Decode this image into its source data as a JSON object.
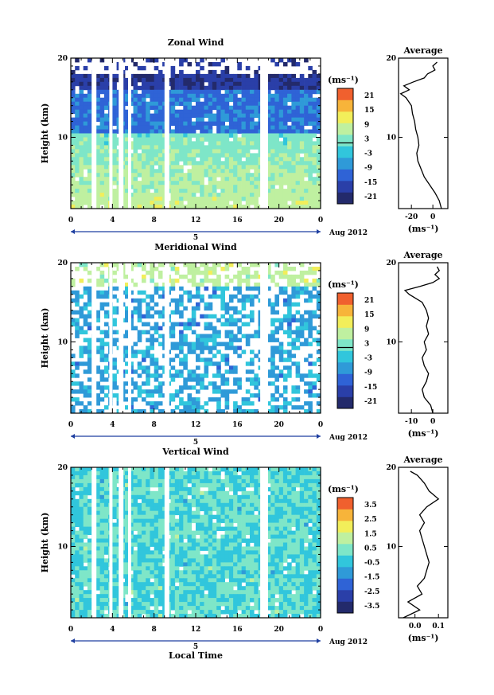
{
  "chart_data": [
    {
      "type": "heatmap",
      "title": "Zonal Wind",
      "ylabel": "Height (km)",
      "xticks": [
        "0",
        "4",
        "8",
        "12",
        "16",
        "20",
        "0"
      ],
      "yticks": [
        "10",
        "20"
      ],
      "day_label": "5",
      "date_label": "Aug 2012",
      "xlim": [
        0,
        24
      ],
      "ylim": [
        1,
        20
      ],
      "colorbar": {
        "unit_label": "(ms⁻¹)",
        "ticks": [
          "21",
          "15",
          "9",
          "3",
          "-3",
          "-9",
          "-15",
          "-21"
        ],
        "range": [
          -24,
          24
        ],
        "zero_line": true
      },
      "profile": {
        "title": "Average",
        "unit_label": "(ms⁻¹)",
        "xticks": [
          "-20",
          "0"
        ],
        "yticks": [
          "10",
          "20"
        ],
        "xlim": [
          -32,
          14
        ],
        "heights": [
          1,
          2,
          3,
          4,
          5,
          6,
          7,
          8,
          9,
          10,
          11,
          12,
          13,
          14,
          15,
          15.5,
          16,
          16.5,
          17,
          17.5,
          18,
          18.5,
          19,
          19.5
        ],
        "values": [
          8,
          6,
          2,
          -3,
          -8,
          -11,
          -14,
          -15,
          -13,
          -14,
          -16,
          -17,
          -19,
          -20,
          -25,
          -30,
          -22,
          -27,
          -18,
          -8,
          -5,
          2,
          0,
          4
        ]
      }
    },
    {
      "type": "heatmap",
      "title": "Meridional Wind",
      "ylabel": "Height (km)",
      "xticks": [
        "0",
        "4",
        "8",
        "12",
        "16",
        "20",
        "0"
      ],
      "yticks": [
        "10",
        "20"
      ],
      "day_label": "5",
      "date_label": "Aug 2012",
      "xlim": [
        0,
        24
      ],
      "ylim": [
        1,
        20
      ],
      "colorbar": {
        "unit_label": "(ms⁻¹)",
        "ticks": [
          "21",
          "15",
          "9",
          "3",
          "-3",
          "-9",
          "-15",
          "-21"
        ],
        "range": [
          -24,
          24
        ],
        "zero_line": true
      },
      "profile": {
        "title": "Average",
        "unit_label": "(ms⁻¹)",
        "xticks": [
          "-10",
          "0"
        ],
        "yticks": [
          "10",
          "20"
        ],
        "xlim": [
          -16,
          7
        ],
        "heights": [
          1,
          2,
          3,
          4,
          5,
          6,
          7,
          8,
          9,
          10,
          11,
          12,
          13,
          14,
          15,
          16,
          16.5,
          17,
          17.5,
          18,
          18.5,
          19,
          19.5
        ],
        "values": [
          0,
          -1,
          -4,
          -5,
          -3,
          -2,
          -4,
          -5,
          -3,
          -4,
          -2,
          -3,
          -2,
          -3,
          -5,
          -11,
          -13,
          -6,
          0,
          3,
          1,
          3,
          2
        ]
      }
    },
    {
      "type": "heatmap",
      "title": "Vertical Wind",
      "ylabel": "Height (km)",
      "xlabel": "Local Time",
      "xticks": [
        "0",
        "4",
        "8",
        "12",
        "16",
        "20",
        "0"
      ],
      "yticks": [
        "10",
        "20"
      ],
      "day_label": "5",
      "date_label": "Aug 2012",
      "xlim": [
        0,
        24
      ],
      "ylim": [
        1,
        20
      ],
      "colorbar": {
        "unit_label": "(ms⁻¹)",
        "ticks": [
          "3.5",
          "2.5",
          "1.5",
          "0.5",
          "-0.5",
          "-1.5",
          "-2.5",
          "-3.5"
        ],
        "range": [
          -4,
          4
        ],
        "zero_line": false
      },
      "profile": {
        "title": "Average",
        "unit_label": "(ms⁻¹)",
        "xticks": [
          "0.0",
          "0.1"
        ],
        "yticks": [
          "10",
          "20"
        ],
        "xlim": [
          -0.07,
          0.14
        ],
        "heights": [
          1,
          2,
          3,
          4,
          5,
          6,
          7,
          8,
          9,
          10,
          11,
          12,
          13,
          14,
          15,
          16,
          17,
          18,
          19,
          19.5
        ],
        "values": [
          -0.05,
          0.02,
          -0.03,
          0.03,
          0.01,
          0.04,
          0.05,
          0.06,
          0.05,
          0.04,
          0.03,
          0.02,
          0.04,
          0.02,
          0.05,
          0.1,
          0.06,
          0.04,
          0.01,
          -0.02
        ]
      }
    }
  ]
}
